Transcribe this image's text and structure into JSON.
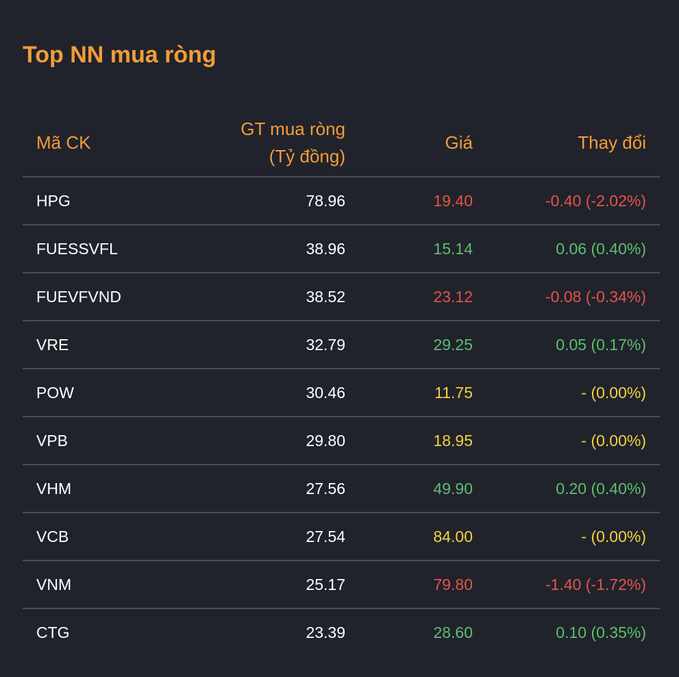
{
  "title": "Top NN mua ròng",
  "colors": {
    "accent": "#f39c37",
    "down": "#e5534b",
    "up": "#5cbf6e",
    "flat": "#f5d142",
    "background": "#21232c"
  },
  "table": {
    "headers": {
      "code": "Mã CK",
      "value_line1": "GT mua ròng",
      "value_line2": "(Tỷ đồng)",
      "price": "Giá",
      "change": "Thay đổi"
    },
    "rows": [
      {
        "code": "HPG",
        "value": "78.96",
        "price": "19.40",
        "change": "-0.40 (-2.02%)",
        "trend": "down"
      },
      {
        "code": "FUESSVFL",
        "value": "38.96",
        "price": "15.14",
        "change": "0.06 (0.40%)",
        "trend": "up"
      },
      {
        "code": "FUEVFVND",
        "value": "38.52",
        "price": "23.12",
        "change": "-0.08 (-0.34%)",
        "trend": "down"
      },
      {
        "code": "VRE",
        "value": "32.79",
        "price": "29.25",
        "change": "0.05 (0.17%)",
        "trend": "up"
      },
      {
        "code": "POW",
        "value": "30.46",
        "price": "11.75",
        "change": "- (0.00%)",
        "trend": "flat"
      },
      {
        "code": "VPB",
        "value": "29.80",
        "price": "18.95",
        "change": "- (0.00%)",
        "trend": "flat"
      },
      {
        "code": "VHM",
        "value": "27.56",
        "price": "49.90",
        "change": "0.20 (0.40%)",
        "trend": "up"
      },
      {
        "code": "VCB",
        "value": "27.54",
        "price": "84.00",
        "change": "- (0.00%)",
        "trend": "flat"
      },
      {
        "code": "VNM",
        "value": "25.17",
        "price": "79.80",
        "change": "-1.40 (-1.72%)",
        "trend": "down"
      },
      {
        "code": "CTG",
        "value": "23.39",
        "price": "28.60",
        "change": "0.10 (0.35%)",
        "trend": "up"
      }
    ]
  }
}
